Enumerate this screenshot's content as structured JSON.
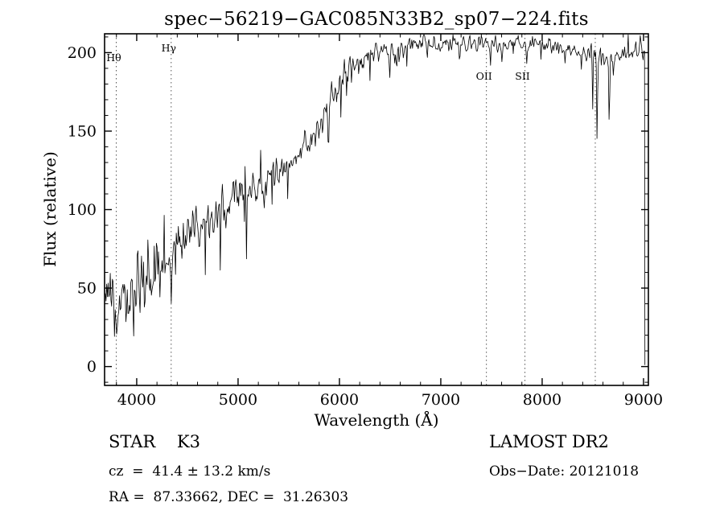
{
  "chart_data": {
    "type": "line",
    "title": "spec−56219−GAC085N33B2_sp07−224.fits",
    "xlabel": "Wavelength (Å)",
    "ylabel": "Flux (relative)",
    "xlim": [
      3683,
      9048
    ],
    "ylim": [
      -12,
      212
    ],
    "xticks": [
      4000,
      5000,
      6000,
      7000,
      8000,
      9000
    ],
    "yticks": [
      0,
      50,
      100,
      150,
      200
    ],
    "x_minor_step": 200,
    "y_minor_step": 10,
    "grid": false,
    "line_color": "#000000",
    "marker_color": "#555555",
    "line_markers": [
      {
        "label": "Hθ",
        "wl": 3798,
        "label_y": 76
      },
      {
        "label": "Hγ",
        "wl": 4340,
        "label_y": 64
      },
      {
        "label": "OII",
        "wl": 7450,
        "label_y": 99
      },
      {
        "label": "SII",
        "wl": 7830,
        "label_y": 99
      },
      {
        "label": "",
        "wl": 8524,
        "label_y": 0
      }
    ],
    "spectral_range": [
      3690,
      9012
    ],
    "sampling_step": 7,
    "noise_seed": 9,
    "continuum_points": [
      [
        3690,
        32
      ],
      [
        3740,
        40
      ],
      [
        3790,
        42
      ],
      [
        3840,
        46
      ],
      [
        3890,
        50
      ],
      [
        3940,
        46
      ],
      [
        3990,
        54
      ],
      [
        4040,
        57
      ],
      [
        4090,
        60
      ],
      [
        4150,
        63
      ],
      [
        4250,
        66
      ],
      [
        4350,
        72
      ],
      [
        4450,
        80
      ],
      [
        4550,
        86
      ],
      [
        4650,
        90
      ],
      [
        4750,
        95
      ],
      [
        4850,
        102
      ],
      [
        4950,
        108
      ],
      [
        5050,
        112
      ],
      [
        5150,
        115
      ],
      [
        5250,
        118
      ],
      [
        5350,
        122
      ],
      [
        5450,
        126
      ],
      [
        5550,
        132
      ],
      [
        5650,
        140
      ],
      [
        5750,
        148
      ],
      [
        5850,
        160
      ],
      [
        5950,
        175
      ],
      [
        6050,
        188
      ],
      [
        6150,
        195
      ],
      [
        6250,
        198
      ],
      [
        6350,
        200
      ],
      [
        6450,
        202
      ],
      [
        6550,
        202
      ],
      [
        6650,
        203
      ],
      [
        6750,
        204
      ],
      [
        6850,
        204
      ],
      [
        6950,
        205
      ],
      [
        7050,
        206
      ],
      [
        7150,
        205
      ],
      [
        7250,
        205
      ],
      [
        7350,
        206
      ],
      [
        7450,
        206
      ],
      [
        7550,
        205
      ],
      [
        7650,
        204
      ],
      [
        7750,
        205
      ],
      [
        7850,
        205
      ],
      [
        7950,
        206
      ],
      [
        8050,
        205
      ],
      [
        8150,
        203
      ],
      [
        8250,
        202
      ],
      [
        8350,
        201
      ],
      [
        8450,
        200
      ],
      [
        8550,
        198
      ],
      [
        8650,
        197
      ],
      [
        8750,
        198
      ],
      [
        8850,
        199
      ],
      [
        8950,
        201
      ],
      [
        9012,
        202
      ]
    ],
    "noise_sigma_points": [
      [
        3690,
        21
      ],
      [
        3800,
        19
      ],
      [
        3900,
        17
      ],
      [
        4000,
        14
      ],
      [
        4200,
        12
      ],
      [
        4400,
        11
      ],
      [
        4700,
        9
      ],
      [
        5000,
        8
      ],
      [
        5300,
        7.5
      ],
      [
        5600,
        7
      ],
      [
        5900,
        6
      ],
      [
        6100,
        5
      ],
      [
        6400,
        4.5
      ],
      [
        6700,
        4
      ],
      [
        7000,
        3.5
      ],
      [
        7400,
        3
      ],
      [
        7800,
        3
      ],
      [
        8200,
        3
      ],
      [
        8600,
        3.5
      ],
      [
        9012,
        4
      ]
    ],
    "absorption_features": [
      {
        "wl": 3933,
        "depth": 28,
        "sigma": 7
      },
      {
        "wl": 3968,
        "depth": 26,
        "sigma": 6
      },
      {
        "wl": 4101,
        "depth": 22,
        "sigma": 5
      },
      {
        "wl": 4227,
        "depth": 24,
        "sigma": 5
      },
      {
        "wl": 4340,
        "depth": 22,
        "sigma": 5
      },
      {
        "wl": 4383,
        "depth": 20,
        "sigma": 5
      },
      {
        "wl": 4455,
        "depth": 16,
        "sigma": 5
      },
      {
        "wl": 4861,
        "depth": 15,
        "sigma": 5
      },
      {
        "wl": 5175,
        "depth": 14,
        "sigma": 6
      },
      {
        "wl": 5890,
        "depth": 20,
        "sigma": 5
      },
      {
        "wl": 6122,
        "depth": 14,
        "sigma": 5
      },
      {
        "wl": 6300,
        "depth": 22,
        "sigma": 5
      },
      {
        "wl": 6495,
        "depth": 18,
        "sigma": 5
      },
      {
        "wl": 6563,
        "depth": 20,
        "sigma": 5
      },
      {
        "wl": 6867,
        "depth": 10,
        "sigma": 6
      },
      {
        "wl": 7186,
        "depth": 8,
        "sigma": 6
      },
      {
        "wl": 7605,
        "depth": 12,
        "sigma": 8
      },
      {
        "wl": 8227,
        "depth": 8,
        "sigma": 6
      },
      {
        "wl": 8498,
        "depth": 36,
        "sigma": 5
      },
      {
        "wl": 8542,
        "depth": 50,
        "sigma": 6
      },
      {
        "wl": 8662,
        "depth": 45,
        "sigma": 6
      }
    ],
    "edge_drop": {
      "wl": 9014,
      "flux": 1
    }
  },
  "footer": {
    "left": {
      "classification": "STAR    K3",
      "cz": "cz  =  41.4 ± 13.2 km/s",
      "coords": "RA =  87.33662, DEC =  31.26303"
    },
    "right": {
      "survey": "LAMOST DR2",
      "obs_date": "Obs−Date: 20121018"
    }
  }
}
